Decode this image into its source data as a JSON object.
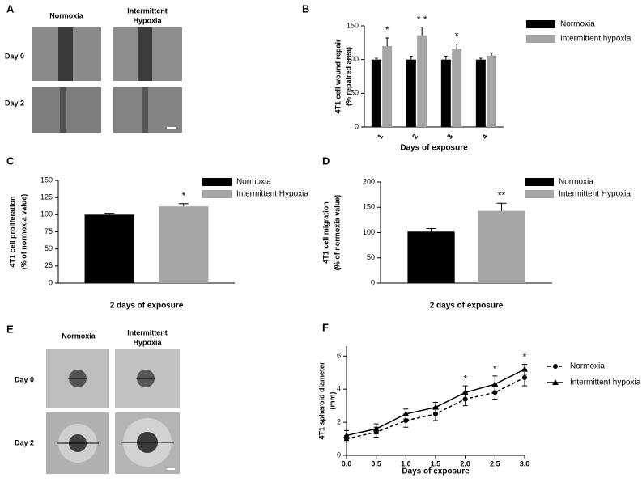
{
  "figure_images": [
    {
      "panel": "A",
      "columns": [
        "Normoxia",
        [
          "Intermittent",
          "Hypoxia"
        ]
      ],
      "rows": [
        "Day 0",
        "Day 2"
      ]
    },
    {
      "panel": "E",
      "columns": [
        "Normoxia",
        [
          "Intermittent",
          "Hypoxia"
        ]
      ],
      "rows": [
        "Day 0",
        "Day 2"
      ]
    }
  ],
  "chart_data": [
    {
      "panel": "B",
      "type": "bar",
      "y_label": [
        "4T1 cell wound repair",
        "(% repaired area)"
      ],
      "x_label": "Days of exposure",
      "categories": [
        "1",
        "2",
        "3",
        "4"
      ],
      "series": [
        {
          "name": "Normoxia",
          "color": "#000000",
          "values": [
            100,
            100,
            100,
            100
          ],
          "errors": [
            2,
            5,
            5,
            2
          ]
        },
        {
          "name": "Intermittent hypoxia",
          "color": "#a6a6a6",
          "values": [
            120,
            136,
            116,
            106
          ],
          "errors": [
            12,
            12,
            7,
            4
          ]
        }
      ],
      "annotations": [
        "*",
        "* *",
        "*",
        null
      ],
      "ylim": [
        0,
        150
      ],
      "yticks": [
        0,
        50,
        100,
        150
      ]
    },
    {
      "panel": "C",
      "type": "bar",
      "y_label": [
        "4T1 cell proliferation",
        "(% of normoxia value)"
      ],
      "x_label": "2 days of exposure",
      "categories": [
        null
      ],
      "series": [
        {
          "name": "Normoxia",
          "color": "#000000",
          "values": [
            100
          ],
          "errors": [
            2
          ]
        },
        {
          "name": "Intermittent Hypoxia",
          "color": "#a6a6a6",
          "values": [
            112
          ],
          "errors": [
            4
          ]
        }
      ],
      "annotations": [
        "*"
      ],
      "ylim": [
        0,
        150
      ],
      "yticks": [
        0,
        25,
        50,
        75,
        100,
        125,
        150
      ]
    },
    {
      "panel": "D",
      "type": "bar",
      "y_label": [
        "4T1 cell migration",
        "(% of normoxia value)"
      ],
      "x_label": "2 days of exposure",
      "categories": [
        null
      ],
      "series": [
        {
          "name": "Normoxia",
          "color": "#000000",
          "values": [
            102
          ],
          "errors": [
            6
          ]
        },
        {
          "name": "Intermittent Hypoxia",
          "color": "#a6a6a6",
          "values": [
            143
          ],
          "errors": [
            15
          ]
        }
      ],
      "annotations": [
        "**"
      ],
      "ylim": [
        0,
        200
      ],
      "yticks": [
        0,
        50,
        100,
        150,
        200
      ]
    },
    {
      "panel": "F",
      "type": "line",
      "y_label": [
        "4T1 spheroid diameter",
        "(mm)"
      ],
      "x_label": "Days of exposure",
      "x": [
        0,
        0.5,
        1,
        1.5,
        2,
        2.5,
        3
      ],
      "series": [
        {
          "name": "Normoxia",
          "color": "#000000",
          "linestyle": "dashed",
          "marker": "circle",
          "values": [
            1.0,
            1.4,
            2.1,
            2.5,
            3.4,
            3.8,
            4.7
          ],
          "errors": [
            0.2,
            0.3,
            0.4,
            0.4,
            0.4,
            0.4,
            0.5
          ]
        },
        {
          "name": "Intermittent hypoxia",
          "color": "#000000",
          "linestyle": "solid",
          "marker": "triangle",
          "values": [
            1.2,
            1.6,
            2.5,
            2.9,
            3.8,
            4.3,
            5.2
          ],
          "errors": [
            0.3,
            0.3,
            0.3,
            0.3,
            0.4,
            0.5,
            0.3
          ]
        }
      ],
      "annotations": [
        {
          "x": 2,
          "text": "*"
        },
        {
          "x": 2.5,
          "text": "*"
        },
        {
          "x": 3,
          "text": "*"
        }
      ],
      "xlim": [
        0,
        3
      ],
      "xticks": [
        {
          "value": 0,
          "label": "0.0"
        },
        0.5,
        {
          "value": 1,
          "label": "1.0"
        },
        1.5,
        {
          "value": 2,
          "label": "2.0"
        },
        2.5,
        {
          "value": 3,
          "label": "3.0"
        }
      ],
      "ylim": [
        0,
        6.6
      ],
      "yticks": [
        0,
        2,
        4,
        6
      ]
    }
  ]
}
